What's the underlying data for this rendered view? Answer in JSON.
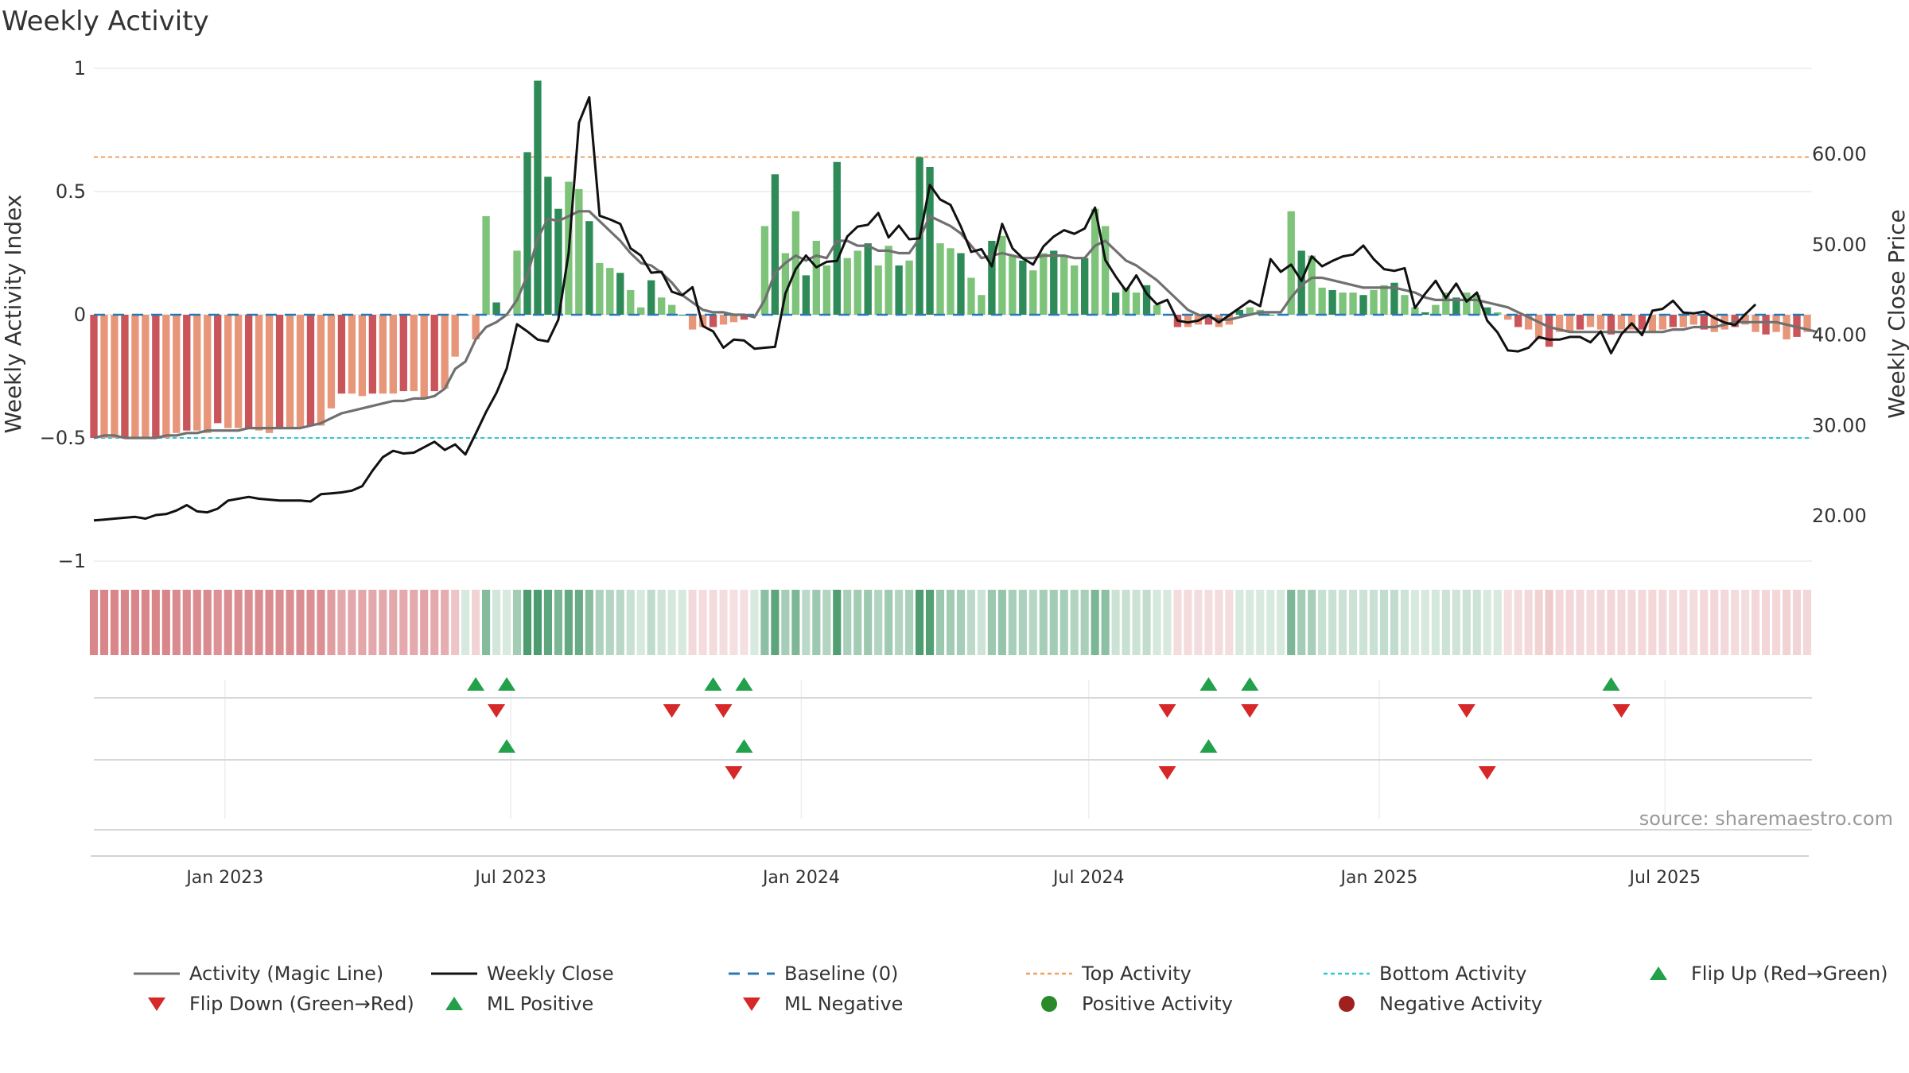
{
  "chart_data": {
    "type": "bar",
    "title": "Weekly Activity",
    "ylabel_left": "Weekly Activity Index",
    "ylabel_right": "Weekly Close Price",
    "source": "source: sharemaestro.com",
    "ylim_left": [
      -1,
      1
    ],
    "ylim_right": [
      15,
      69.5
    ],
    "yticks_left": [
      {
        "v": 1,
        "label": "1"
      },
      {
        "v": 0.5,
        "label": "0.5"
      },
      {
        "v": 0,
        "label": "0"
      },
      {
        "v": -0.5,
        "label": "−0.5"
      },
      {
        "v": -1,
        "label": "−1"
      }
    ],
    "yticks_right": [
      {
        "v": 60,
        "label": "60.00"
      },
      {
        "v": 50,
        "label": "50.00"
      },
      {
        "v": 40,
        "label": "40.00"
      },
      {
        "v": 30,
        "label": "30.00"
      },
      {
        "v": 20,
        "label": "20.00"
      }
    ],
    "x_start": "2022-10-10",
    "x_end": "2025-09-29",
    "date_ticks": [
      {
        "date": "2023-01-01",
        "label": "Jan 2023"
      },
      {
        "date": "2023-07-01",
        "label": "Jul 2023"
      },
      {
        "date": "2024-01-01",
        "label": "Jan 2024"
      },
      {
        "date": "2024-07-01",
        "label": "Jul 2024"
      },
      {
        "date": "2025-01-01",
        "label": "Jan 2025"
      },
      {
        "date": "2025-07-01",
        "label": "Jul 2025"
      }
    ],
    "top_activity": 0.64,
    "bottom_activity": -0.5,
    "activity": [
      -0.5,
      -0.5,
      -0.5,
      -0.5,
      -0.5,
      -0.5,
      -0.5,
      -0.5,
      -0.48,
      -0.47,
      -0.47,
      -0.48,
      -0.44,
      -0.46,
      -0.46,
      -0.46,
      -0.47,
      -0.48,
      -0.46,
      -0.46,
      -0.46,
      -0.45,
      -0.45,
      -0.38,
      -0.32,
      -0.32,
      -0.33,
      -0.32,
      -0.32,
      -0.32,
      -0.31,
      -0.31,
      -0.34,
      -0.31,
      -0.3,
      -0.17,
      0.0,
      -0.1,
      0.4,
      0.05,
      0.0,
      0.26,
      0.66,
      0.95,
      0.56,
      0.43,
      0.54,
      0.51,
      0.38,
      0.21,
      0.19,
      0.17,
      0.1,
      0.03,
      0.14,
      0.07,
      0.04,
      0.0,
      -0.06,
      -0.05,
      -0.05,
      -0.04,
      -0.03,
      -0.02,
      0.0,
      0.36,
      0.57,
      0.25,
      0.42,
      0.16,
      0.3,
      0.2,
      0.62,
      0.23,
      0.26,
      0.29,
      0.2,
      0.28,
      0.2,
      0.22,
      0.64,
      0.6,
      0.29,
      0.27,
      0.25,
      0.15,
      0.08,
      0.3,
      0.32,
      0.24,
      0.22,
      0.18,
      0.25,
      0.26,
      0.24,
      0.2,
      0.23,
      0.43,
      0.36,
      0.09,
      0.11,
      0.09,
      0.12,
      0.04,
      0.0,
      -0.05,
      -0.05,
      -0.04,
      -0.04,
      -0.05,
      -0.04,
      0.02,
      0.03,
      0.02,
      0.0,
      0.0,
      0.42,
      0.26,
      0.24,
      0.11,
      0.1,
      0.09,
      0.09,
      0.08,
      0.1,
      0.12,
      0.13,
      0.08,
      0.03,
      0.01,
      0.04,
      0.09,
      0.07,
      0.09,
      0.08,
      0.03,
      0.01,
      -0.02,
      -0.05,
      -0.06,
      -0.1,
      -0.13,
      -0.07,
      -0.07,
      -0.06,
      -0.05,
      -0.06,
      -0.08,
      -0.06,
      -0.06,
      -0.06,
      -0.07,
      -0.06,
      -0.05,
      -0.05,
      -0.04,
      -0.06,
      -0.07,
      -0.06,
      -0.05,
      -0.04,
      -0.07,
      -0.08,
      -0.07,
      -0.1,
      -0.09,
      -0.07
    ],
    "magic_line": [
      -0.5,
      -0.49,
      -0.49,
      -0.5,
      -0.5,
      -0.5,
      -0.5,
      -0.49,
      -0.49,
      -0.48,
      -0.48,
      -0.47,
      -0.47,
      -0.47,
      -0.47,
      -0.46,
      -0.46,
      -0.46,
      -0.46,
      -0.46,
      -0.46,
      -0.45,
      -0.44,
      -0.42,
      -0.4,
      -0.39,
      -0.38,
      -0.37,
      -0.36,
      -0.35,
      -0.35,
      -0.34,
      -0.34,
      -0.33,
      -0.3,
      -0.22,
      -0.19,
      -0.1,
      -0.05,
      -0.03,
      0.0,
      0.06,
      0.16,
      0.31,
      0.39,
      0.38,
      0.4,
      0.42,
      0.42,
      0.38,
      0.34,
      0.3,
      0.25,
      0.21,
      0.2,
      0.17,
      0.13,
      0.08,
      0.05,
      0.02,
      0.01,
      0.01,
      0.0,
      0.0,
      -0.01,
      0.06,
      0.17,
      0.21,
      0.24,
      0.22,
      0.24,
      0.23,
      0.3,
      0.3,
      0.28,
      0.28,
      0.26,
      0.26,
      0.25,
      0.25,
      0.31,
      0.4,
      0.38,
      0.36,
      0.33,
      0.28,
      0.23,
      0.24,
      0.25,
      0.24,
      0.23,
      0.23,
      0.24,
      0.24,
      0.24,
      0.23,
      0.23,
      0.28,
      0.3,
      0.26,
      0.22,
      0.2,
      0.17,
      0.14,
      0.1,
      0.06,
      0.02,
      0.0,
      -0.01,
      -0.02,
      -0.02,
      -0.01,
      0.0,
      0.01,
      0.01,
      0.01,
      0.07,
      0.12,
      0.15,
      0.15,
      0.14,
      0.13,
      0.12,
      0.11,
      0.11,
      0.11,
      0.11,
      0.1,
      0.09,
      0.07,
      0.06,
      0.06,
      0.06,
      0.06,
      0.06,
      0.05,
      0.04,
      0.03,
      0.01,
      -0.01,
      -0.03,
      -0.05,
      -0.06,
      -0.07,
      -0.07,
      -0.07,
      -0.07,
      -0.07,
      -0.07,
      -0.07,
      -0.07,
      -0.07,
      -0.07,
      -0.06,
      -0.06,
      -0.05,
      -0.05,
      -0.05,
      -0.04,
      -0.03,
      -0.03,
      -0.03,
      -0.03,
      -0.03,
      -0.04,
      -0.05,
      -0.06,
      -0.07
    ],
    "close": [
      19.5,
      19.6,
      19.7,
      19.8,
      19.9,
      19.7,
      20.1,
      20.2,
      20.6,
      21.2,
      20.5,
      20.4,
      20.8,
      21.7,
      21.9,
      22.1,
      21.9,
      21.8,
      21.7,
      21.7,
      21.7,
      21.6,
      22.4,
      22.5,
      22.6,
      22.8,
      23.3,
      25.0,
      26.5,
      27.2,
      26.9,
      27.0,
      27.6,
      28.2,
      27.3,
      27.9,
      26.8,
      29.1,
      31.5,
      33.6,
      36.3,
      41.2,
      40.4,
      39.5,
      39.3,
      41.7,
      49.1,
      63.5,
      66.3,
      53.2,
      52.8,
      52.3,
      49.6,
      48.8,
      46.9,
      47.0,
      44.8,
      44.4,
      45.3,
      41.0,
      40.4,
      38.6,
      39.5,
      39.4,
      38.5,
      38.6,
      38.7,
      44.6,
      47.3,
      48.8,
      47.5,
      48.1,
      48.2,
      50.9,
      52.0,
      52.2,
      53.5,
      50.8,
      52.1,
      50.6,
      50.7,
      56.6,
      55.0,
      54.4,
      52.0,
      49.2,
      49.5,
      47.6,
      52.3,
      49.6,
      48.5,
      47.8,
      49.8,
      50.9,
      51.6,
      51.2,
      51.8,
      54.1,
      48.3,
      46.5,
      44.9,
      46.6,
      44.6,
      43.4,
      43.9,
      41.6,
      41.4,
      41.6,
      42.2,
      41.4,
      42.2,
      43.0,
      43.8,
      43.2,
      48.4,
      47.0,
      47.8,
      46.0,
      48.7,
      47.6,
      48.2,
      48.7,
      48.9,
      49.9,
      48.4,
      47.3,
      47.1,
      47.4,
      43.0,
      44.6,
      46.0,
      44.1,
      45.7,
      43.7,
      44.7,
      41.6,
      40.3,
      38.3,
      38.2,
      38.6,
      39.8,
      39.5,
      39.5,
      39.8,
      39.8,
      39.2,
      40.4,
      38.0,
      40.1,
      41.3,
      40.0,
      42.7,
      42.9,
      43.8,
      42.5,
      42.4,
      42.6,
      41.9,
      41.4,
      41.1,
      42.3,
      43.4
    ]
  },
  "flip_events": {
    "row1_up_weeks": [
      37,
      40,
      60,
      63,
      108,
      112,
      147
    ],
    "row1_down_weeks": [
      39,
      56,
      61,
      104,
      112,
      133,
      148
    ],
    "row2_up_weeks": [
      40,
      63,
      108
    ],
    "row2_down_weeks": [
      62,
      104,
      135
    ]
  },
  "colors": {
    "positive_dark": "#2e8b57",
    "positive_light": "#7dc37a",
    "negative_dark": "#c9545a",
    "negative_light": "#e8967a",
    "magic_line": "#707070",
    "close_line": "#111111",
    "baseline": "#2878b5",
    "top_activity": "#f0a060",
    "bottom_activity": "#30c8c8",
    "flip_up": "#22a04a",
    "flip_down": "#d62828",
    "positive_dot": "#2a8a2a",
    "negative_dot": "#a02020"
  },
  "legend": [
    {
      "label": "Activity (Magic Line)",
      "icon": "solid-line-gray"
    },
    {
      "label": "Weekly Close",
      "icon": "solid-line-black"
    },
    {
      "label": "Baseline (0)",
      "icon": "dashed-line-blue"
    },
    {
      "label": "Top Activity",
      "icon": "dotted-line-orange"
    },
    {
      "label": "Bottom Activity",
      "icon": "dotted-line-cyan"
    },
    {
      "label": "Flip Up (Red→Green)",
      "icon": "triangle-up-green"
    },
    {
      "label": "Flip Down (Green→Red)",
      "icon": "triangle-down-red"
    },
    {
      "label": "ML Positive",
      "icon": "triangle-up-green"
    },
    {
      "label": "ML Negative",
      "icon": "triangle-down-red"
    },
    {
      "label": "Positive Activity",
      "icon": "circle-green"
    },
    {
      "label": "Negative Activity",
      "icon": "circle-red"
    }
  ]
}
